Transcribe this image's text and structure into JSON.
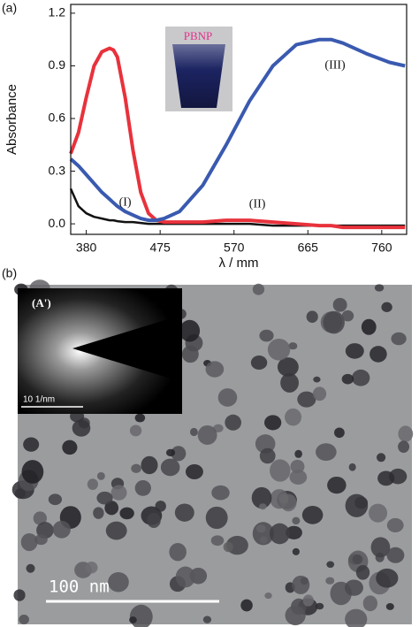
{
  "panels": [
    "(a)",
    "(b)"
  ],
  "chart_data": {
    "type": "line",
    "xlabel": "λ / mm",
    "ylabel": "Absorbance",
    "inset_label": "PBNP",
    "x": [
      360,
      370,
      380,
      390,
      400,
      410,
      415,
      420,
      430,
      440,
      450,
      460,
      470,
      480,
      500,
      530,
      560,
      590,
      620,
      650,
      680,
      695,
      710,
      740,
      770,
      790
    ],
    "series": [
      {
        "color": "#111111",
        "values": [
          0.2,
          0.1,
          0.06,
          0.04,
          0.03,
          0.02,
          0.02,
          0.015,
          0.01,
          0.01,
          0.005,
          0,
          0,
          0,
          0,
          0,
          0,
          0,
          -0.01,
          -0.01,
          -0.01,
          -0.01,
          -0.01,
          -0.01,
          -0.01,
          -0.01
        ]
      },
      {
        "color": "#e8323c",
        "values": [
          0.4,
          0.52,
          0.72,
          0.9,
          0.98,
          1.0,
          0.99,
          0.95,
          0.72,
          0.42,
          0.18,
          0.06,
          0.02,
          0.01,
          0.01,
          0.01,
          0.02,
          0.02,
          0.01,
          0.0,
          -0.01,
          -0.01,
          -0.02,
          -0.02,
          -0.02,
          -0.02
        ]
      },
      {
        "color": "#3a5ab0",
        "values": [
          0.37,
          0.33,
          0.28,
          0.23,
          0.18,
          0.14,
          0.12,
          0.1,
          0.07,
          0.05,
          0.03,
          0.02,
          0.02,
          0.03,
          0.07,
          0.22,
          0.45,
          0.7,
          0.9,
          1.02,
          1.05,
          1.05,
          1.03,
          0.97,
          0.92,
          0.9
        ]
      }
    ],
    "annotations": [
      {
        "text": "(I)",
        "x": 430,
        "y": 0.12
      },
      {
        "text": "(II)",
        "x": 600,
        "y": 0.11
      },
      {
        "text": "(III)",
        "x": 700,
        "y": 0.9
      }
    ],
    "xlim": [
      360,
      792
    ],
    "ylim": [
      -0.06,
      1.25
    ],
    "xticks": [
      380,
      475,
      570,
      665,
      760
    ],
    "yticks": [
      {
        "value": 0,
        "label": "0.0"
      },
      0.3,
      0.6,
      0.9,
      1.2
    ]
  },
  "micrograph": {
    "inset_label": "(A')",
    "inset_scale": "10 1/nm",
    "scale_bar": "100 nm"
  }
}
